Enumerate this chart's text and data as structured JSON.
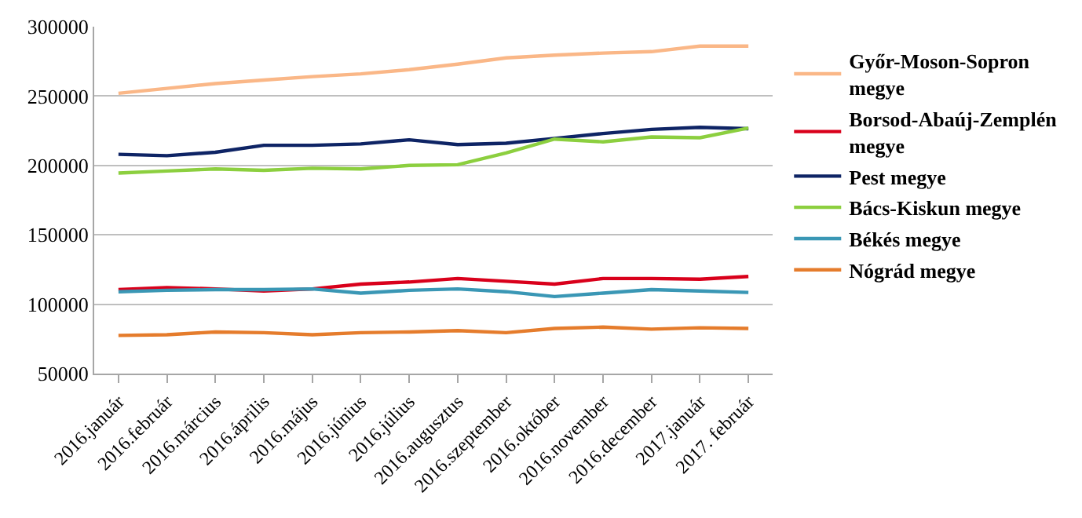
{
  "chart_data": {
    "type": "line",
    "categories": [
      "2016.január",
      "2016.február",
      "2016.március",
      "2016.április",
      "2016.május",
      "2016.június",
      "2016.július",
      "2016.augusztus",
      "2016.szeptember",
      "2016.október",
      "2016.november",
      "2016.december",
      "2017.január",
      "2017. február"
    ],
    "series": [
      {
        "name": "Győr-Moson-Sopron megye",
        "color": "#fab787",
        "values": [
          252000,
          255500,
          259000,
          261500,
          264000,
          266000,
          269000,
          273000,
          277500,
          279500,
          281000,
          282000,
          286000,
          286000
        ]
      },
      {
        "name": "Borsod-Abaúj-Zemplén megye",
        "color": "#d9001b",
        "values": [
          110500,
          112000,
          111000,
          109500,
          111000,
          114500,
          116000,
          118500,
          116500,
          114500,
          118500,
          118500,
          118000,
          120000
        ]
      },
      {
        "name": "Pest megye",
        "color": "#0e2465",
        "values": [
          208000,
          207000,
          209500,
          214500,
          214500,
          215500,
          218500,
          215000,
          216000,
          219500,
          223000,
          226000,
          227500,
          226500
        ]
      },
      {
        "name": "Bács-Kiskun megye",
        "color": "#8ccf3f",
        "values": [
          194500,
          196000,
          197500,
          196500,
          198000,
          197500,
          200000,
          200500,
          209000,
          219000,
          217000,
          220500,
          220000,
          227000
        ]
      },
      {
        "name": "Békés megye",
        "color": "#3a97b5",
        "values": [
          109000,
          110000,
          110500,
          110500,
          111000,
          108000,
          110000,
          111000,
          109000,
          105500,
          108000,
          110500,
          109500,
          108500
        ]
      },
      {
        "name": "Nógrád megye",
        "color": "#e57c2c",
        "values": [
          77500,
          78000,
          80000,
          79500,
          78000,
          79500,
          80000,
          81000,
          79500,
          82500,
          83500,
          82000,
          83000,
          82500
        ]
      }
    ],
    "ylim": [
      50000,
      300000
    ],
    "yticks": [
      50000,
      100000,
      150000,
      200000,
      250000,
      300000
    ],
    "grid": "y",
    "legend": "right",
    "marker": "none",
    "line_style": "solid"
  }
}
